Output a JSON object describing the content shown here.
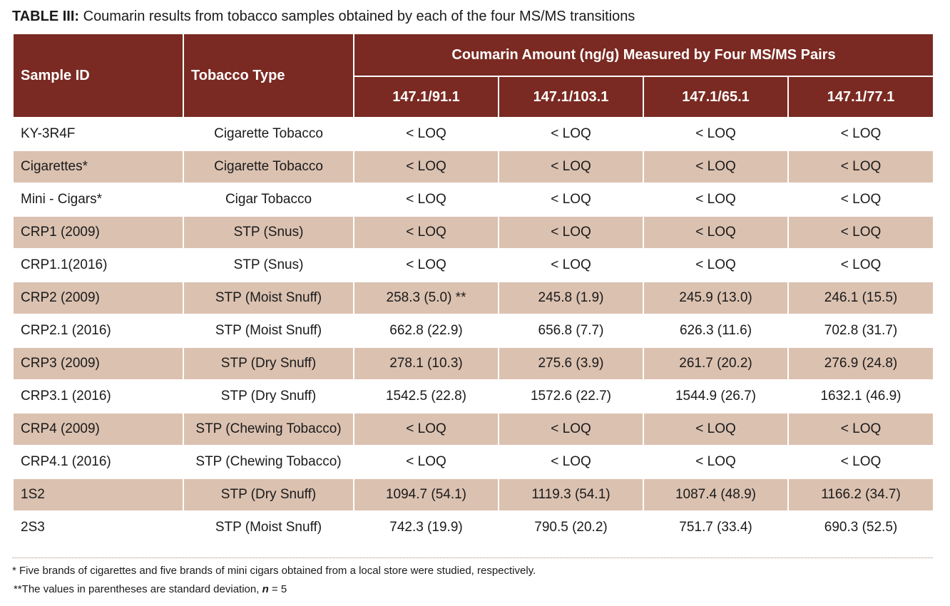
{
  "caption": {
    "label": "TABLE III:",
    "text": " Coumarin results from tobacco samples obtained by each of the four MS/MS transitions"
  },
  "header": {
    "sample_id": "Sample ID",
    "tobacco_type": "Tobacco Type",
    "group": "Coumarin Amount (ng/g) Measured by Four MS/MS Pairs",
    "pairs": [
      "147.1/91.1",
      "147.1/103.1",
      "147.1/65.1",
      "147.1/77.1"
    ]
  },
  "rows": [
    {
      "id": "KY-3R4F",
      "type": "Cigarette Tobacco",
      "v": [
        "< LOQ",
        "< LOQ",
        "< LOQ",
        "< LOQ"
      ]
    },
    {
      "id": "Cigarettes*",
      "type": "Cigarette Tobacco",
      "v": [
        "< LOQ",
        "< LOQ",
        "< LOQ",
        "< LOQ"
      ]
    },
    {
      "id": "Mini - Cigars*",
      "type": "Cigar Tobacco",
      "v": [
        "< LOQ",
        "< LOQ",
        "< LOQ",
        "< LOQ"
      ]
    },
    {
      "id": "CRP1 (2009)",
      "type": "STP (Snus)",
      "v": [
        "< LOQ",
        "< LOQ",
        "< LOQ",
        "< LOQ"
      ]
    },
    {
      "id": "CRP1.1(2016)",
      "type": "STP (Snus)",
      "v": [
        "< LOQ",
        "< LOQ",
        "< LOQ",
        "< LOQ"
      ]
    },
    {
      "id": "CRP2 (2009)",
      "type": "STP (Moist Snuff)",
      "v": [
        "258.3 (5.0) **",
        "245.8 (1.9)",
        "245.9 (13.0)",
        "246.1 (15.5)"
      ]
    },
    {
      "id": "CRP2.1 (2016)",
      "type": "STP (Moist Snuff)",
      "v": [
        "662.8 (22.9)",
        "656.8 (7.7)",
        "626.3 (11.6)",
        "702.8 (31.7)"
      ]
    },
    {
      "id": "CRP3 (2009)",
      "type": "STP (Dry Snuff)",
      "v": [
        "278.1 (10.3)",
        "275.6 (3.9)",
        "261.7 (20.2)",
        "276.9 (24.8)"
      ]
    },
    {
      "id": "CRP3.1 (2016)",
      "type": "STP (Dry Snuff)",
      "v": [
        "1542.5 (22.8)",
        "1572.6 (22.7)",
        "1544.9 (26.7)",
        "1632.1 (46.9)"
      ]
    },
    {
      "id": "CRP4 (2009)",
      "type": "STP (Chewing Tobacco)",
      "v": [
        "< LOQ",
        "< LOQ",
        "< LOQ",
        "< LOQ"
      ]
    },
    {
      "id": "CRP4.1 (2016)",
      "type": "STP (Chewing Tobacco)",
      "v": [
        "< LOQ",
        "< LOQ",
        "< LOQ",
        "< LOQ"
      ]
    },
    {
      "id": "1S2",
      "type": "STP (Dry Snuff)",
      "v": [
        "1094.7 (54.1)",
        "1119.3 (54.1)",
        "1087.4 (48.9)",
        "1166.2 (34.7)"
      ]
    },
    {
      "id": "2S3",
      "type": "STP (Moist Snuff)",
      "v": [
        "742.3 (19.9)",
        "790.5 (20.2)",
        "751.7 (33.4)",
        "690.3 (52.5)"
      ]
    }
  ],
  "footnotes": {
    "fn1": "* Five brands of cigarettes and five brands of mini cigars obtained from a local store were studied, respectively.",
    "fn2_prefix": "**The values in parentheses are standard deviation, ",
    "fn2_var": "n",
    "fn2_suffix": " = 5"
  },
  "colors": {
    "header_bg": "#7a2a22",
    "band_bg": "#dbc1b0"
  }
}
